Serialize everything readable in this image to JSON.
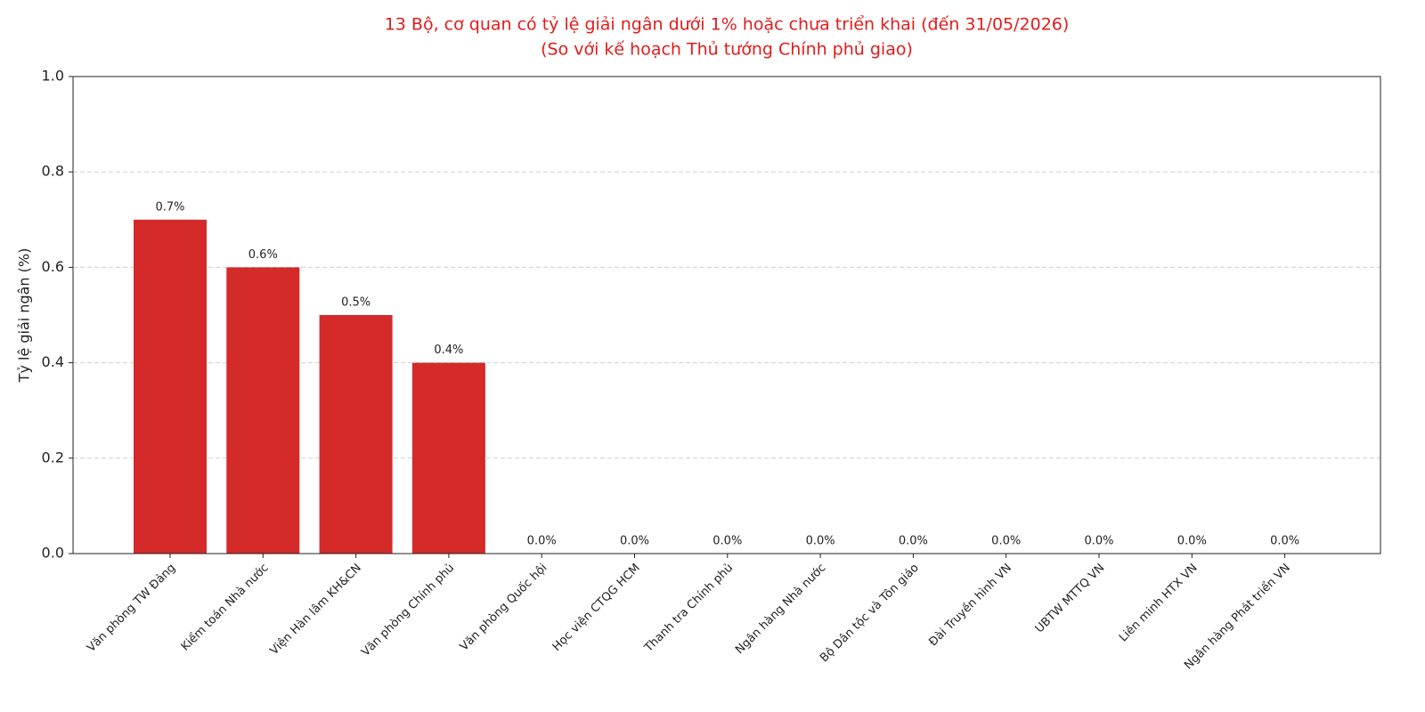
{
  "chart_data": {
    "type": "bar",
    "title": "13 Bộ, cơ quan có tỷ lệ giải ngân dưới 1% hoặc chưa triển khai (đến 31/05/2026)",
    "subtitle": "(So với kế hoạch Thủ tướng Chính phủ giao)",
    "y_label": "Tỷ lệ giải ngân (%)",
    "categories": [
      "Văn phòng TW Đảng",
      "Kiểm toán Nhà nước",
      "Viện Hàn lâm KH&CN",
      "Văn phòng Chính phủ",
      "Văn phòng Quốc hội",
      "Học viện CTQG HCM",
      "Thanh tra Chính phủ",
      "Ngân hàng Nhà nước",
      "Bộ Dân tộc và Tôn giáo",
      "Đài Truyền hình VN",
      "UBTW MTTQ VN",
      "Liên minh HTX VN",
      "Ngân hàng Phát triển VN"
    ],
    "values": [
      0.7,
      0.6,
      0.5,
      0.4,
      0,
      0,
      0,
      0,
      0,
      0,
      0,
      0,
      0
    ],
    "value_labels": [
      "0.7%",
      "0.6%",
      "0.5%",
      "0.4%",
      "0.0%",
      "0.0%",
      "0.0%",
      "0.0%",
      "0.0%",
      "0.0%",
      "0.0%",
      "0.0%",
      "0.0%"
    ],
    "color": "#d42a2a",
    "ylim": [
      0,
      1.0
    ],
    "yticks": [
      {
        "value": 0,
        "label": "0.0"
      },
      {
        "value": 0.2,
        "label": "0.2"
      },
      {
        "value": 0.4,
        "label": "0.4"
      },
      {
        "value": 0.6,
        "label": "0.6"
      },
      {
        "value": 0.8,
        "label": "0.8"
      },
      {
        "value": 1.0,
        "label": "1.0"
      }
    ],
    "grid": true
  }
}
